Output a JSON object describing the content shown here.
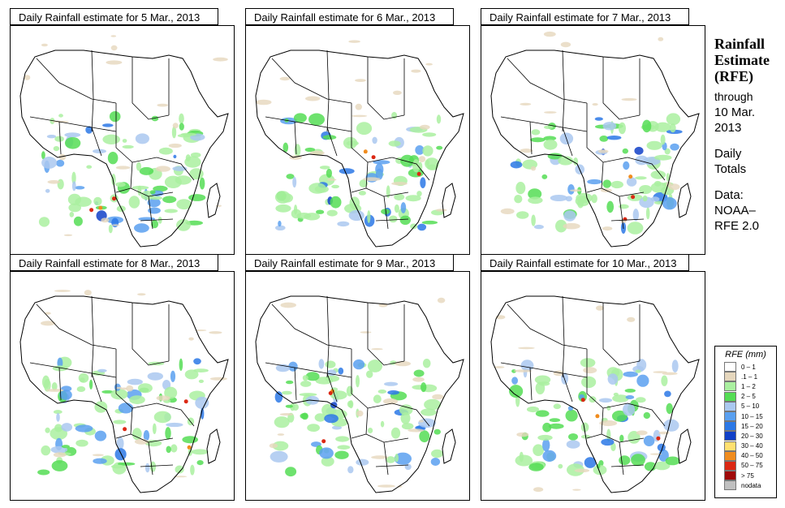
{
  "panels": [
    {
      "title": "Daily Rainfall estimate for  5 Mar., 2013",
      "day": 5
    },
    {
      "title": "Daily Rainfall estimate for  6 Mar., 2013",
      "day": 6
    },
    {
      "title": "Daily Rainfall estimate for  7 Mar., 2013",
      "day": 7
    },
    {
      "title": "Daily Rainfall estimate for  8 Mar., 2013",
      "day": 8
    },
    {
      "title": "Daily Rainfall estimate for  9 Mar., 2013",
      "day": 9
    },
    {
      "title": "Daily Rainfall estimate for  10 Mar., 2013",
      "day": 10
    }
  ],
  "sidebar": {
    "heading1": "Rainfall",
    "heading2": "Estimate",
    "heading3": "(RFE)",
    "through": "through",
    "date1": "10 Mar.",
    "date2": "2013",
    "daily1": "Daily",
    "daily2": "Totals",
    "data1": "Data:",
    "data2": "NOAA–",
    "data3": "RFE 2.0"
  },
  "legend": {
    "title": "RFE (mm)",
    "items": [
      {
        "label": "0 – 1",
        "color": "#ffffff"
      },
      {
        "label": ".1 – 1",
        "color": "#e6d7bd"
      },
      {
        "label": "1 – 2",
        "color": "#aaf0a0"
      },
      {
        "label": "2 – 5",
        "color": "#55dd55"
      },
      {
        "label": "5 – 10",
        "color": "#aac8f0"
      },
      {
        "label": "10 – 15",
        "color": "#5aa0f0"
      },
      {
        "label": "15 – 20",
        "color": "#2b78e6"
      },
      {
        "label": "20 – 30",
        "color": "#1040c8"
      },
      {
        "label": "30 – 40",
        "color": "#ffe070"
      },
      {
        "label": "40 – 50",
        "color": "#f08c1e"
      },
      {
        "label": "50 – 75",
        "color": "#dc2814"
      },
      {
        "label": "> 75",
        "color": "#a00a0a"
      },
      {
        "label": "nodata",
        "color": "#c0c0c0"
      }
    ]
  }
}
